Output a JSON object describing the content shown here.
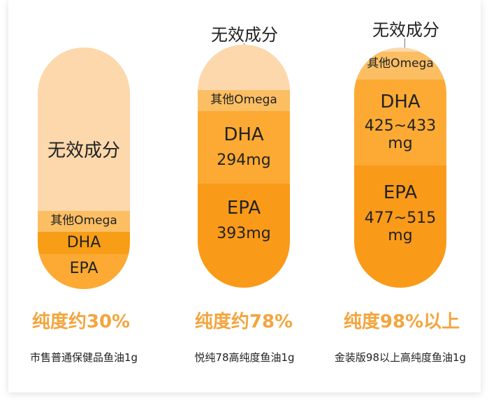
{
  "colors": {
    "ineffective": "#fcd8ac",
    "other_omega": "#fbbe63",
    "dha_bright": "#f89d16",
    "dha_light": "#fcaa33",
    "epa": "#fa9a19",
    "purity_text": "#f3a53e"
  },
  "capsules": [
    {
      "segments": {
        "ineffective": "无效成分",
        "omega": "其他Omega",
        "dha": "DHA",
        "epa": "EPA"
      },
      "purity": "纯度约30%",
      "purity_value_percent": 30,
      "caption": "市售普通保健品鱼油1g"
    },
    {
      "top_label": "无效成分",
      "segments": {
        "omega": "其他Omega",
        "dha_name": "DHA",
        "dha_amount": "294mg",
        "epa_name": "EPA",
        "epa_amount": "393mg"
      },
      "purity": "纯度约78%",
      "purity_value_percent": 78,
      "caption": "悦纯78高纯度鱼油1g"
    },
    {
      "top_label": "无效成分",
      "segments": {
        "omega": "其他Omega",
        "dha_name": "DHA",
        "dha_amount_line1": "425~433",
        "dha_amount_line2": "mg",
        "epa_name": "EPA",
        "epa_amount_line1": "477~515",
        "epa_amount_line2": "mg"
      },
      "purity": "纯度98%以上",
      "purity_value_percent": 98,
      "caption": "金装版98以上高纯度鱼油1g"
    }
  ]
}
